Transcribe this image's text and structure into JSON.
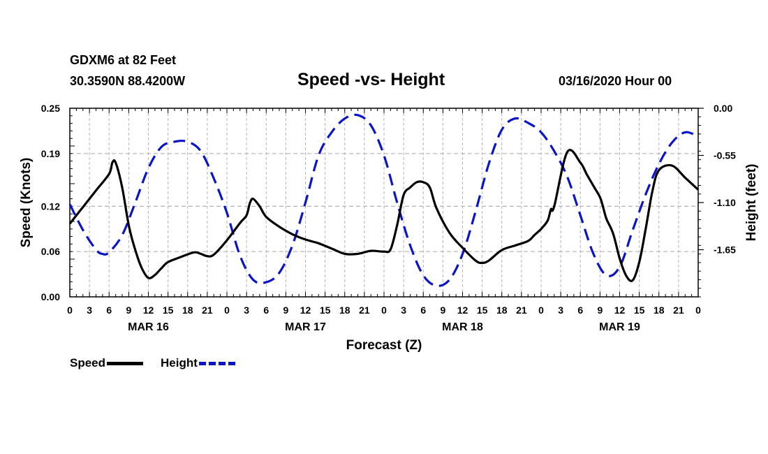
{
  "header": {
    "station": "GDXM6 at 82 Feet",
    "coords": "30.3590N 88.4200W",
    "title": "Speed -vs- Height",
    "run_time": "03/16/2020 Hour 00"
  },
  "legend": {
    "speed_label": "Speed",
    "height_label": "Height"
  },
  "colors": {
    "speed": "#000000",
    "height": "#0a14c8",
    "grid": "#b4b4b4"
  },
  "chart_data": {
    "type": "line",
    "title": "Speed -vs- Height",
    "xlabel": "Forecast (Z)",
    "ylabel": "Speed (Knots)",
    "y2label": "Height (feet)",
    "xlim": [
      0,
      96
    ],
    "ylim": [
      0,
      0.25
    ],
    "y2lim": [
      -2.2,
      0
    ],
    "grid": true,
    "x_ticks": [
      0,
      3,
      6,
      9,
      12,
      15,
      18,
      21,
      24,
      27,
      30,
      33,
      36,
      39,
      42,
      45,
      48,
      51,
      54,
      57,
      60,
      63,
      66,
      69,
      72,
      75,
      78,
      81,
      84,
      87,
      90,
      93,
      96
    ],
    "x_tick_labels": [
      "0",
      "3",
      "6",
      "9",
      "12",
      "15",
      "18",
      "21",
      "0",
      "3",
      "6",
      "9",
      "12",
      "15",
      "18",
      "21",
      "0",
      "3",
      "6",
      "9",
      "12",
      "15",
      "18",
      "21",
      "0",
      "3",
      "6",
      "9",
      "12",
      "15",
      "18",
      "21",
      "0"
    ],
    "date_labels": [
      {
        "hour": 12,
        "text": "MAR 16"
      },
      {
        "hour": 36,
        "text": "MAR 17"
      },
      {
        "hour": 60,
        "text": "MAR 18"
      },
      {
        "hour": 84,
        "text": "MAR 19"
      }
    ],
    "y_ticks": [
      0.0,
      0.06,
      0.12,
      0.19,
      0.25
    ],
    "y_tick_labels": [
      "0.00",
      "0.06",
      "0.12",
      "0.19",
      "0.25"
    ],
    "y2_ticks": [
      0.0,
      -0.55,
      -1.1,
      -1.65
    ],
    "y2_tick_labels": [
      "0.00",
      "-0.55",
      "-1.10",
      "-1.65"
    ],
    "series": [
      {
        "name": "Speed",
        "axis": "left",
        "style": "solid",
        "x": [
          0,
          2,
          4,
          6,
          6.5,
          7,
          8,
          9,
          10,
          11,
          12,
          13,
          14,
          15,
          17,
          19,
          20,
          21,
          22,
          24,
          26,
          27,
          27.5,
          28,
          29,
          30,
          32,
          34,
          36,
          38,
          40,
          42,
          44,
          46,
          48,
          49,
          50,
          51,
          52,
          53,
          54,
          55,
          56,
          58,
          60,
          62,
          63,
          64,
          66,
          68,
          70,
          71,
          72,
          73,
          73.5,
          74,
          76,
          78,
          79,
          80,
          81,
          81.5,
          82,
          83,
          84,
          85,
          86,
          87,
          88,
          89,
          90,
          92,
          94,
          96
        ],
        "values": [
          0.097,
          0.119,
          0.141,
          0.163,
          0.178,
          0.178,
          0.145,
          0.095,
          0.062,
          0.038,
          0.025,
          0.029,
          0.038,
          0.046,
          0.053,
          0.059,
          0.057,
          0.054,
          0.056,
          0.075,
          0.098,
          0.108,
          0.124,
          0.13,
          0.12,
          0.106,
          0.093,
          0.083,
          0.076,
          0.071,
          0.064,
          0.057,
          0.057,
          0.061,
          0.06,
          0.063,
          0.095,
          0.135,
          0.145,
          0.152,
          0.152,
          0.145,
          0.118,
          0.085,
          0.065,
          0.048,
          0.045,
          0.048,
          0.062,
          0.068,
          0.074,
          0.082,
          0.09,
          0.101,
          0.116,
          0.12,
          0.192,
          0.178,
          0.162,
          0.147,
          0.132,
          0.118,
          0.103,
          0.084,
          0.051,
          0.028,
          0.022,
          0.046,
          0.091,
          0.14,
          0.168,
          0.174,
          0.158,
          0.142
        ]
      },
      {
        "name": "Height",
        "axis": "right",
        "style": "dashed",
        "x": [
          0,
          2,
          4,
          5,
          6,
          8,
          10,
          12,
          14,
          16,
          18,
          20,
          22,
          24,
          26,
          28,
          30,
          32,
          34,
          36,
          38,
          40,
          42,
          44,
          46,
          48,
          50,
          52,
          54,
          56,
          58,
          60,
          62,
          64,
          66,
          68,
          70,
          72,
          74,
          76,
          78,
          80,
          82,
          84,
          86,
          88,
          90,
          92,
          94,
          96
        ],
        "values": [
          -1.12,
          -1.42,
          -1.65,
          -1.7,
          -1.68,
          -1.48,
          -1.1,
          -0.7,
          -0.45,
          -0.39,
          -0.39,
          -0.5,
          -0.82,
          -1.22,
          -1.72,
          -2.0,
          -2.03,
          -1.92,
          -1.6,
          -1.1,
          -0.55,
          -0.28,
          -0.12,
          -0.08,
          -0.2,
          -0.55,
          -1.1,
          -1.6,
          -1.95,
          -2.07,
          -2.0,
          -1.7,
          -1.2,
          -0.65,
          -0.25,
          -0.12,
          -0.17,
          -0.28,
          -0.5,
          -0.8,
          -1.25,
          -1.7,
          -1.95,
          -1.85,
          -1.42,
          -1.0,
          -0.65,
          -0.4,
          -0.28,
          -0.33
        ]
      }
    ]
  }
}
